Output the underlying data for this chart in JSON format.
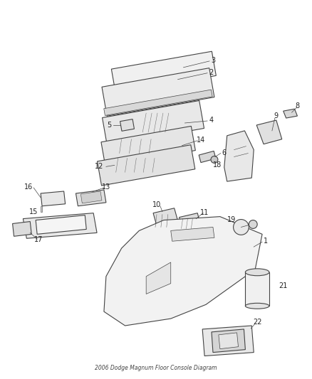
{
  "title": "2006 Dodge Magnum Floor Console Diagram",
  "background_color": "#ffffff",
  "line_color": "#444444",
  "label_color": "#222222",
  "figsize": [
    4.38,
    5.33
  ],
  "dpi": 100
}
